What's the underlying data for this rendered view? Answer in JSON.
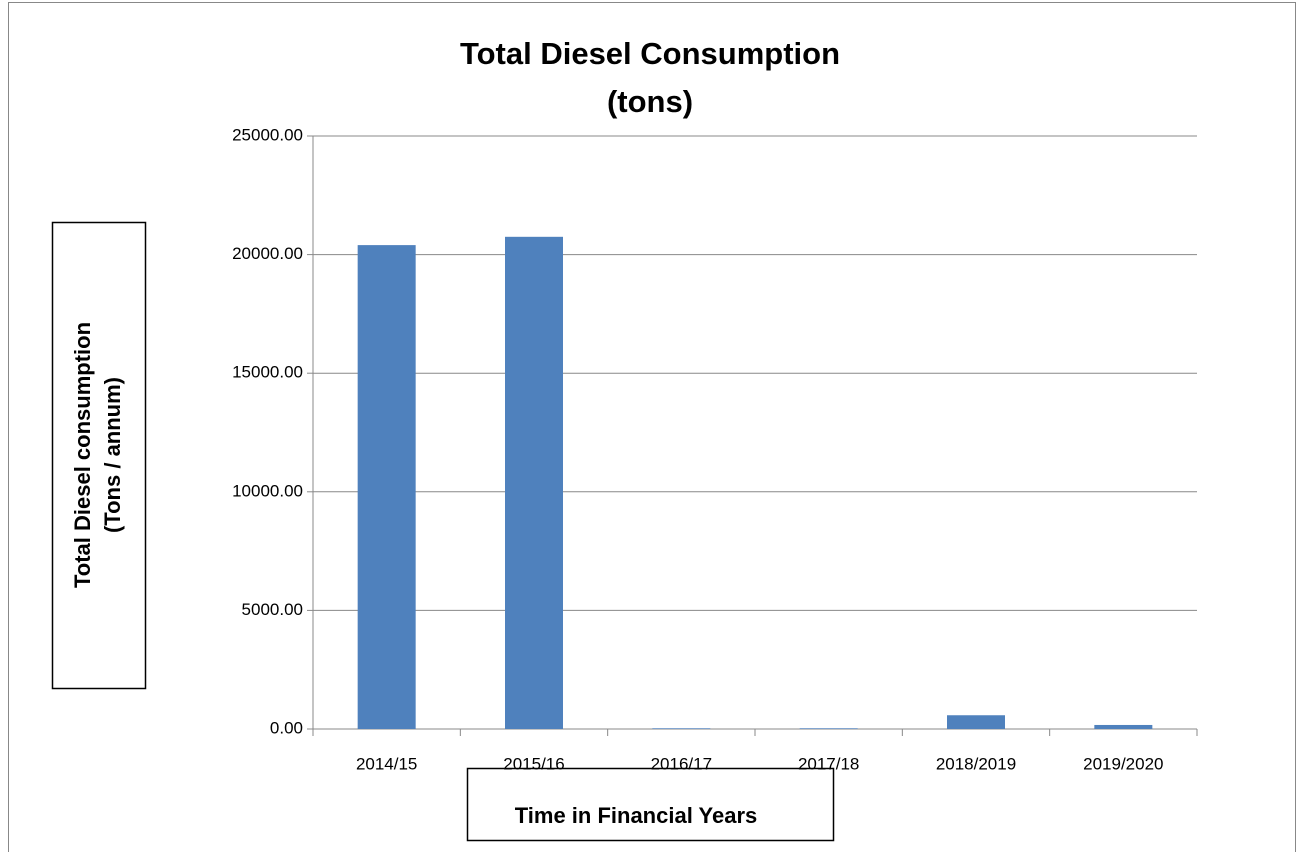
{
  "chart_data": {
    "type": "bar",
    "title": [
      "Total Diesel Consumption",
      "(tons)"
    ],
    "y_label": [
      "Total Diesel consumption",
      "(Tons / annum)"
    ],
    "x_label": "Time in Financial Years",
    "categories": [
      "2014/15",
      "2015/16",
      "2016/17",
      "2017/18",
      "2018/2019",
      "2019/2020"
    ],
    "values": [
      20400,
      20750,
      30,
      30,
      580,
      170
    ],
    "color": "#4f81bd",
    "ylim": [
      0,
      25000
    ],
    "yticks": [
      {
        "value": 0,
        "label": "0.00"
      },
      {
        "value": 5000,
        "label": "5000.00"
      },
      {
        "value": 10000,
        "label": "10000.00"
      },
      {
        "value": 15000,
        "label": "15000.00"
      },
      {
        "value": 20000,
        "label": "20000.00"
      },
      {
        "value": 25000,
        "label": "25000.00"
      }
    ],
    "grid": true
  }
}
